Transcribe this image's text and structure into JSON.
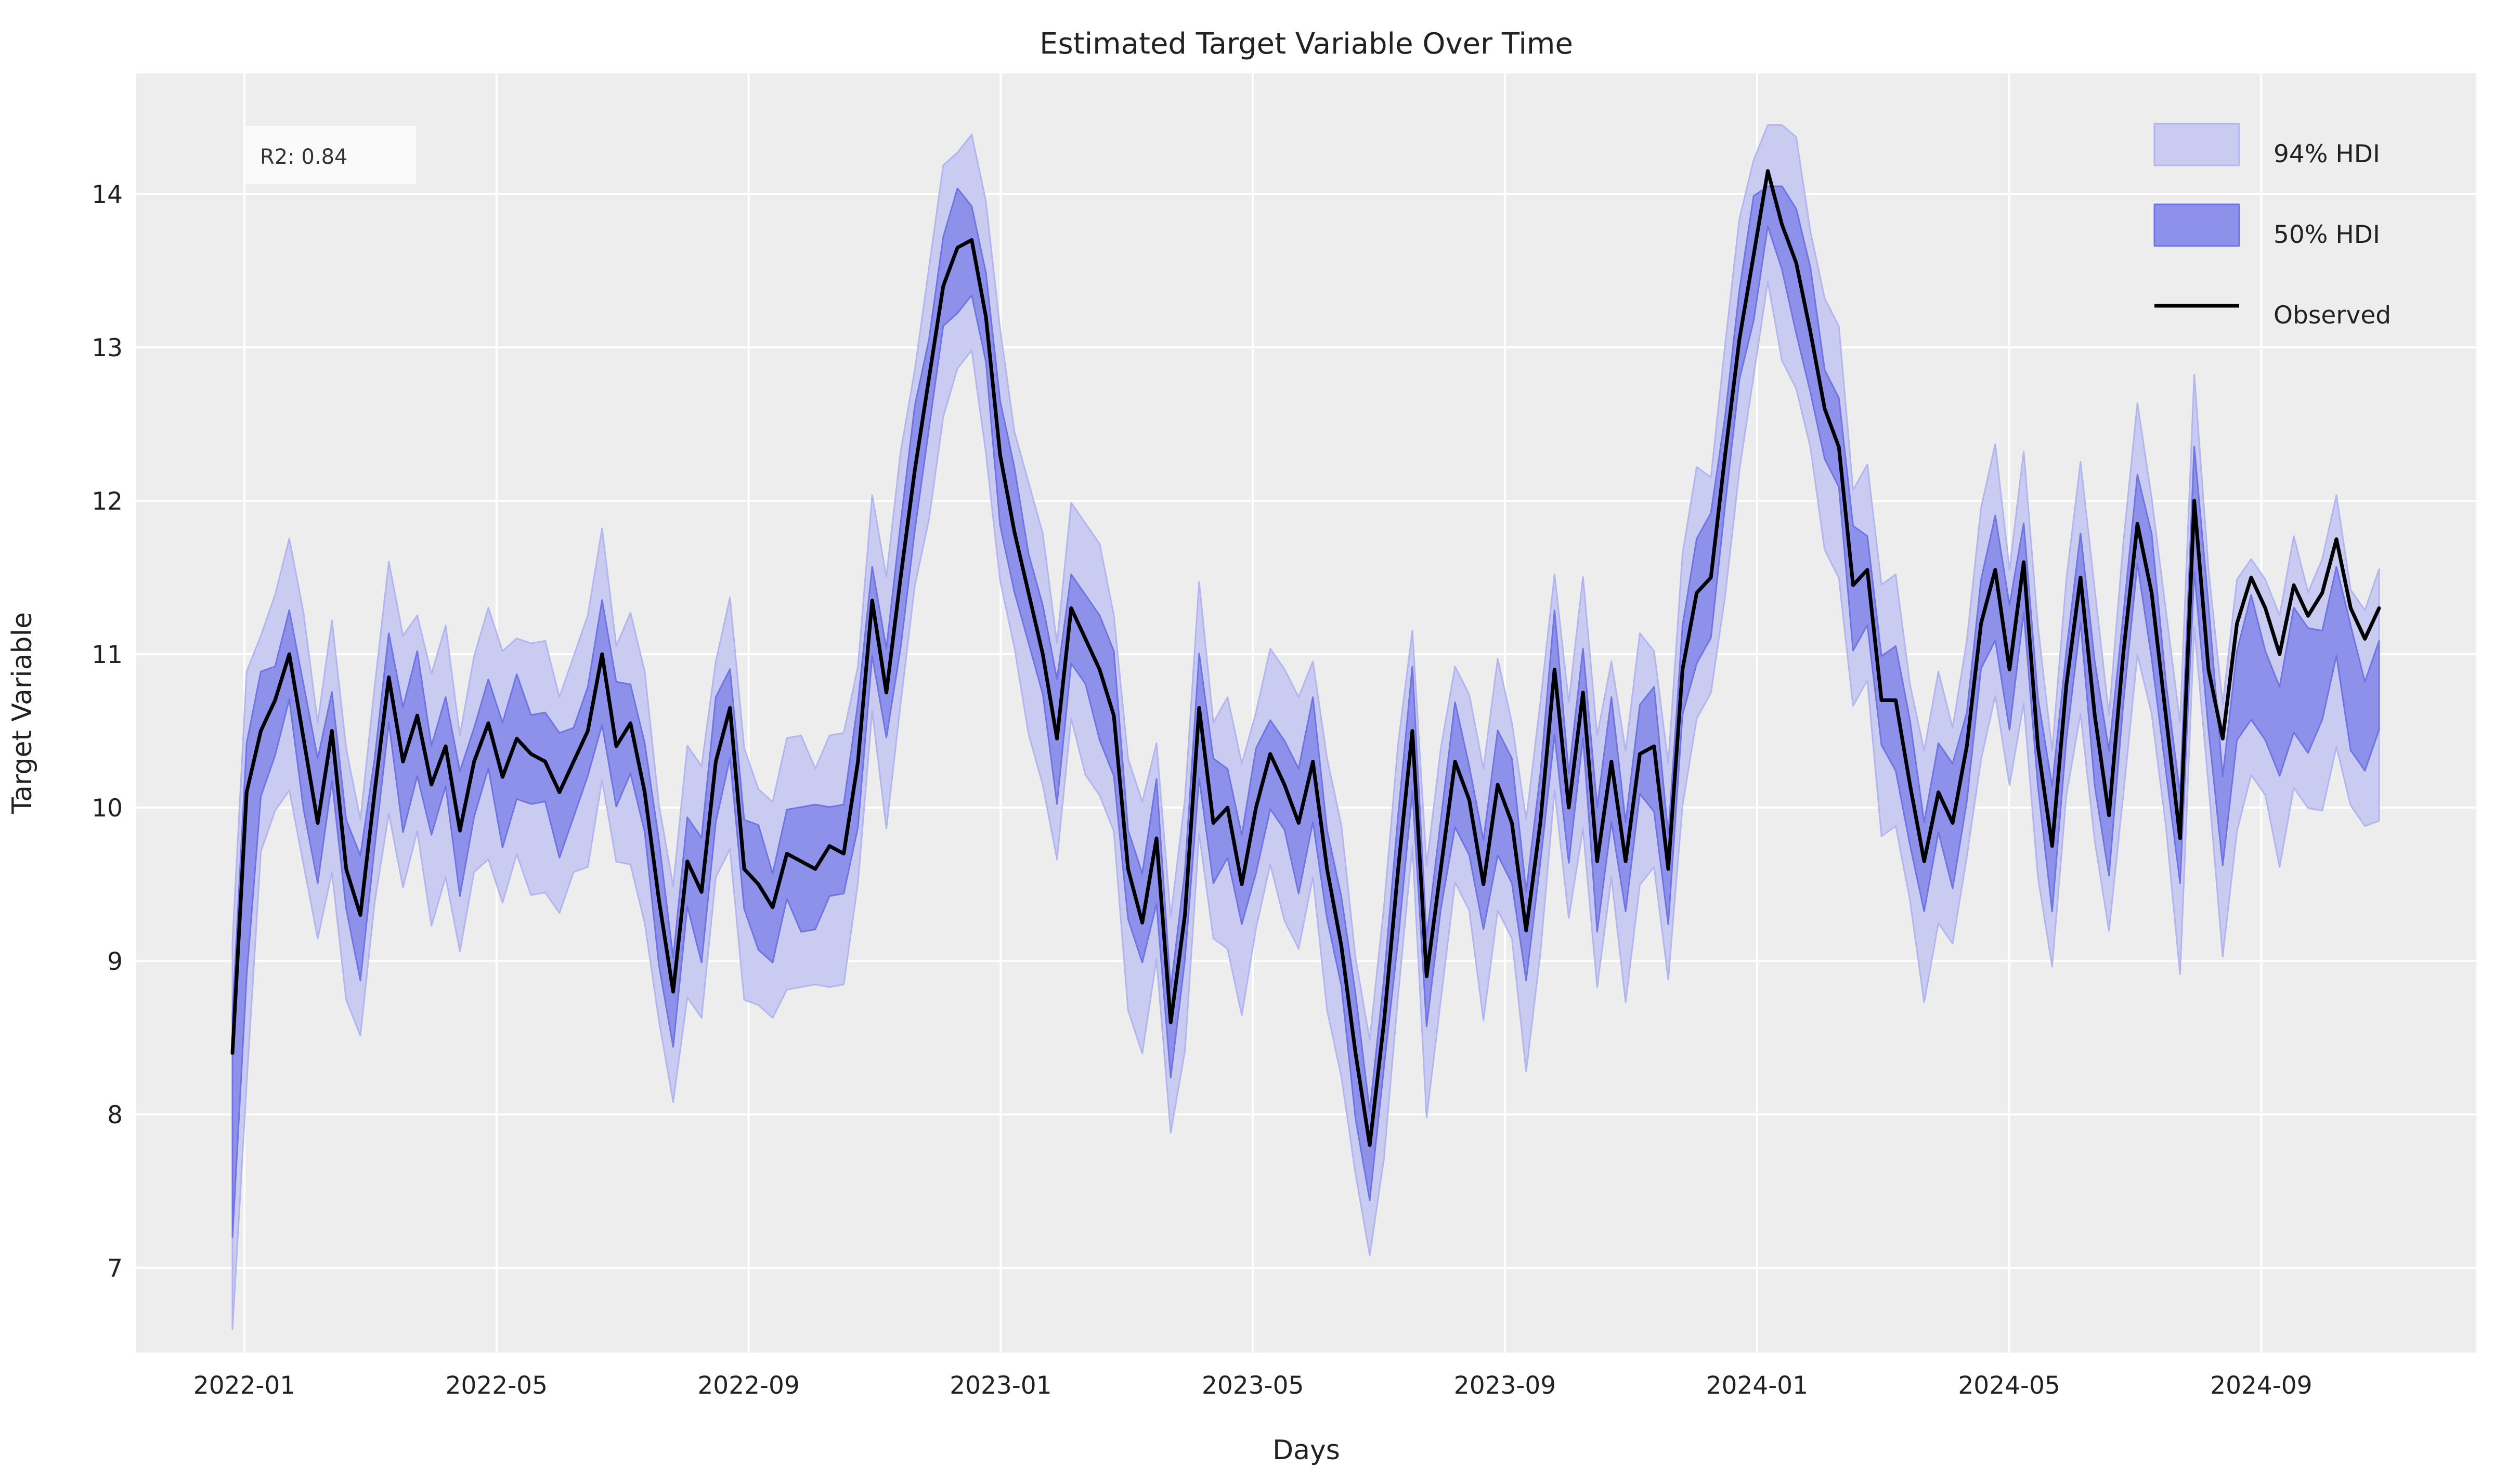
{
  "figure": {
    "title": "Estimated Target Variable Over Time",
    "x_axis_label": "Days",
    "y_axis_label": "Target Variable",
    "annotation": "R2: 0.84"
  },
  "legend": {
    "items": [
      {
        "label": "94% HDI",
        "swatch": "band-light"
      },
      {
        "label": "50% HDI",
        "swatch": "band-dark"
      },
      {
        "label": "Observed",
        "swatch": "black-line"
      }
    ]
  },
  "colors": {
    "figure_bg": "#ffffff",
    "axes_bg": "#ededed",
    "grid": "#ffffff",
    "hdi94_fill": "#c9cbf1",
    "hdi94_edge": "#b2b5ee",
    "hdi50_fill": "#8d91e9",
    "hdi50_edge": "#6f74e2",
    "observed": "#000000",
    "text": "#212121",
    "annotation_bg": "#fafafa"
  },
  "chart_data": {
    "type": "line",
    "title": "Estimated Target Variable Over Time",
    "xlabel": "Days",
    "ylabel": "Target Variable",
    "legend_entries": [
      "94% HDI",
      "50% HDI",
      "Observed"
    ],
    "annotation": "R2: 0.84",
    "grid": true,
    "legend_position": "upper right",
    "x_tick_labels": [
      "2022-01",
      "2022-05",
      "2022-09",
      "2023-01",
      "2023-05",
      "2023-09",
      "2024-01",
      "2024-05",
      "2024-09"
    ],
    "x_tick_months": [
      0,
      4,
      8,
      12,
      16,
      20,
      24,
      28,
      32
    ],
    "y_ticks": [
      7,
      8,
      9,
      10,
      11,
      12,
      13,
      14
    ],
    "ylim": [
      6.45,
      14.79
    ],
    "xlim_months": [
      -1.72,
      35.42
    ],
    "series": {
      "name": "Observed",
      "start_date": "2021-12-29",
      "step_days": 7,
      "data_start_month": -0.19,
      "data_end_month": 33.87,
      "observed": [
        8.4,
        10.1,
        10.5,
        10.7,
        11.0,
        10.45,
        9.9,
        10.5,
        9.6,
        9.3,
        10.1,
        10.85,
        10.3,
        10.6,
        10.15,
        10.4,
        9.85,
        10.3,
        10.55,
        10.2,
        10.45,
        10.35,
        10.3,
        10.1,
        10.3,
        10.5,
        11.0,
        10.4,
        10.55,
        10.1,
        9.4,
        8.8,
        9.65,
        9.45,
        10.3,
        10.65,
        9.6,
        9.5,
        9.35,
        9.7,
        9.65,
        9.6,
        9.75,
        9.7,
        10.3,
        11.35,
        10.75,
        11.5,
        12.2,
        12.8,
        13.4,
        13.65,
        13.7,
        13.2,
        12.3,
        11.8,
        11.4,
        11.0,
        10.45,
        11.3,
        11.1,
        10.9,
        10.6,
        9.6,
        9.25,
        9.8,
        8.6,
        9.3,
        10.65,
        9.9,
        10.0,
        9.5,
        10.0,
        10.35,
        10.15,
        9.9,
        10.3,
        9.6,
        9.1,
        8.4,
        7.8,
        8.6,
        9.6,
        10.5,
        8.9,
        9.6,
        10.3,
        10.05,
        9.5,
        10.15,
        9.9,
        9.2,
        9.9,
        10.9,
        10.0,
        10.75,
        9.65,
        10.3,
        9.65,
        10.35,
        10.4,
        9.6,
        10.9,
        11.4,
        11.5,
        12.3,
        13.05,
        13.6,
        14.15,
        13.8,
        13.55,
        13.1,
        12.6,
        12.35,
        11.45,
        11.55,
        10.7,
        10.7,
        10.15,
        9.65,
        10.1,
        9.9,
        10.4,
        11.2,
        11.55,
        10.9,
        11.6,
        10.4,
        9.75,
        10.8,
        11.5,
        10.6,
        9.95,
        11.0,
        11.85,
        11.4,
        10.6,
        9.8,
        12.0,
        10.9,
        10.45,
        11.2,
        11.5,
        11.3,
        11.0,
        11.45,
        11.25,
        11.4,
        11.75,
        11.3,
        11.1,
        11.3
      ]
    },
    "hdi_bands": {
      "hdi50_halfwidth": [
        0.36,
        0.32
      ],
      "hdi94_halfwidth": [
        0.82,
        0.72
      ],
      "band_jitter": 0.1,
      "hdi94_top_cap": 14.45,
      "hdi50_top_cap": 14.05,
      "tail_offset": {
        "from_index": 140,
        "amount": -0.5
      },
      "first_point_hdi94_low": 6.6,
      "first_point_hdi50_low": 7.2,
      "second_point_hdi94_low": 8.2,
      "second_point_hdi50_low": 8.9
    }
  }
}
